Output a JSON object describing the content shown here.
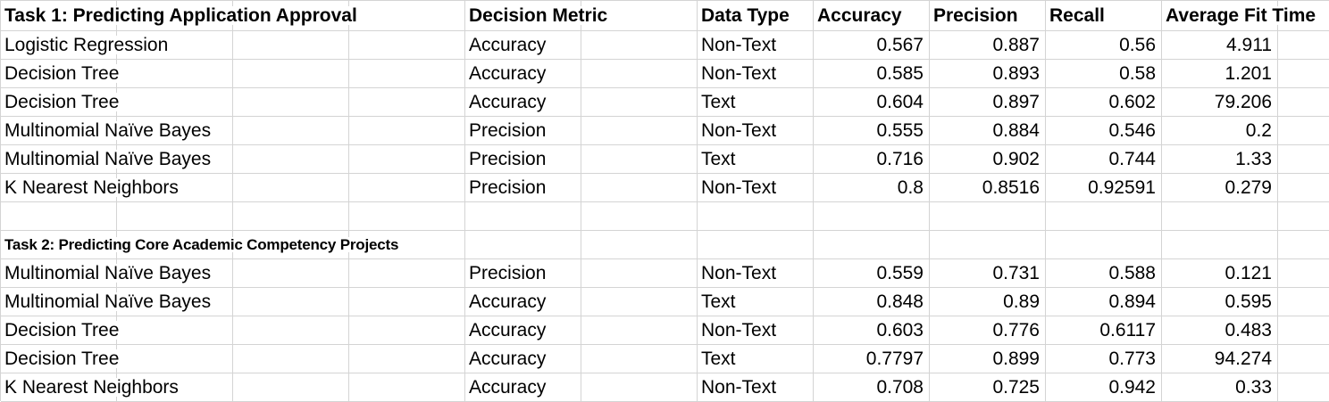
{
  "task1": {
    "title": "Task 1: Predicting Application Approval",
    "headers": {
      "decision_metric": "Decision Metric",
      "data_type": "Data Type",
      "accuracy": "Accuracy",
      "precision": "Precision",
      "recall": "Recall",
      "avg_fit_time": "Average Fit Time"
    },
    "rows": [
      {
        "model": "Logistic Regression",
        "metric": "Accuracy",
        "dtype": "Non-Text",
        "accuracy": "0.567",
        "precision": "0.887",
        "recall": "0.56",
        "fit": "4.911"
      },
      {
        "model": "Decision Tree",
        "metric": "Accuracy",
        "dtype": "Non-Text",
        "accuracy": "0.585",
        "precision": "0.893",
        "recall": "0.58",
        "fit": "1.201"
      },
      {
        "model": "Decision Tree",
        "metric": "Accuracy",
        "dtype": "Text",
        "accuracy": "0.604",
        "precision": "0.897",
        "recall": "0.602",
        "fit": "79.206"
      },
      {
        "model": "Multinomial Naïve Bayes",
        "metric": "Precision",
        "dtype": "Non-Text",
        "accuracy": "0.555",
        "precision": "0.884",
        "recall": "0.546",
        "fit": "0.2"
      },
      {
        "model": "Multinomial Naïve Bayes",
        "metric": "Precision",
        "dtype": "Text",
        "accuracy": "0.716",
        "precision": "0.902",
        "recall": "0.744",
        "fit": "1.33"
      },
      {
        "model": "K Nearest Neighbors",
        "metric": "Precision",
        "dtype": "Non-Text",
        "accuracy": "0.8",
        "precision": "0.8516",
        "recall": "0.92591",
        "fit": "0.279"
      }
    ]
  },
  "task2": {
    "title": "Task 2: Predicting Core Academic Competency Projects",
    "rows": [
      {
        "model": "Multinomial Naïve Bayes",
        "metric": "Precision",
        "dtype": "Non-Text",
        "accuracy": "0.559",
        "precision": "0.731",
        "recall": "0.588",
        "fit": "0.121"
      },
      {
        "model": "Multinomial Naïve Bayes",
        "metric": "Accuracy",
        "dtype": "Text",
        "accuracy": "0.848",
        "precision": "0.89",
        "recall": "0.894",
        "fit": "0.595"
      },
      {
        "model": "Decision Tree",
        "metric": "Accuracy",
        "dtype": "Non-Text",
        "accuracy": "0.603",
        "precision": "0.776",
        "recall": "0.6117",
        "fit": "0.483"
      },
      {
        "model": "Decision Tree",
        "metric": "Accuracy",
        "dtype": "Text",
        "accuracy": "0.7797",
        "precision": "0.899",
        "recall": "0.773",
        "fit": "94.274"
      },
      {
        "model": "K Nearest Neighbors",
        "metric": "Accuracy",
        "dtype": "Non-Text",
        "accuracy": "0.708",
        "precision": "0.725",
        "recall": "0.942",
        "fit": "0.33"
      }
    ]
  }
}
